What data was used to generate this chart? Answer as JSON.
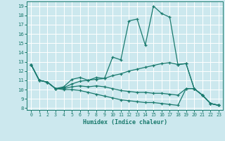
{
  "xlabel": "Humidex (Indice chaleur)",
  "xlim": [
    -0.5,
    23.5
  ],
  "ylim": [
    7.8,
    19.5
  ],
  "yticks": [
    8,
    9,
    10,
    11,
    12,
    13,
    14,
    15,
    16,
    17,
    18,
    19
  ],
  "xticks": [
    0,
    1,
    2,
    3,
    4,
    5,
    6,
    7,
    8,
    9,
    10,
    11,
    12,
    13,
    14,
    15,
    16,
    17,
    18,
    19,
    20,
    21,
    22,
    23
  ],
  "bg_color": "#cce8ee",
  "grid_color": "#ffffff",
  "line_color": "#1a7a6e",
  "line1_x": [
    0,
    1,
    2,
    3,
    4,
    5,
    6,
    7,
    8,
    9,
    10,
    11,
    12,
    13,
    14,
    15,
    16,
    17,
    18,
    19,
    20,
    21,
    22,
    23
  ],
  "line1_y": [
    12.7,
    11.0,
    10.8,
    10.1,
    10.3,
    11.1,
    11.3,
    11.0,
    11.3,
    11.2,
    13.5,
    13.2,
    17.4,
    17.6,
    14.8,
    19.0,
    18.2,
    17.8,
    12.7,
    12.8,
    10.1,
    9.4,
    8.5,
    8.3
  ],
  "line2_x": [
    0,
    1,
    2,
    3,
    4,
    5,
    6,
    7,
    8,
    9,
    10,
    11,
    12,
    13,
    14,
    15,
    16,
    17,
    18,
    19,
    20,
    21,
    22,
    23
  ],
  "line2_y": [
    12.7,
    11.0,
    10.8,
    10.1,
    10.2,
    10.6,
    10.9,
    11.0,
    11.1,
    11.2,
    11.5,
    11.7,
    12.0,
    12.2,
    12.4,
    12.6,
    12.8,
    12.9,
    12.7,
    12.8,
    10.1,
    9.4,
    8.5,
    8.3
  ],
  "line3_x": [
    0,
    1,
    2,
    3,
    4,
    5,
    6,
    7,
    8,
    9,
    10,
    11,
    12,
    13,
    14,
    15,
    16,
    17,
    18,
    19,
    20,
    21,
    22,
    23
  ],
  "line3_y": [
    12.7,
    11.0,
    10.8,
    10.1,
    10.1,
    10.3,
    10.4,
    10.3,
    10.4,
    10.3,
    10.1,
    9.9,
    9.8,
    9.7,
    9.7,
    9.6,
    9.6,
    9.5,
    9.4,
    10.1,
    10.1,
    9.4,
    8.5,
    8.3
  ],
  "line4_x": [
    0,
    1,
    2,
    3,
    4,
    5,
    6,
    7,
    8,
    9,
    10,
    11,
    12,
    13,
    14,
    15,
    16,
    17,
    18,
    19,
    20,
    21,
    22,
    23
  ],
  "line4_y": [
    12.7,
    11.0,
    10.8,
    10.1,
    10.0,
    10.0,
    9.9,
    9.7,
    9.5,
    9.3,
    9.1,
    8.9,
    8.8,
    8.7,
    8.6,
    8.6,
    8.5,
    8.4,
    8.3,
    10.1,
    10.1,
    9.4,
    8.5,
    8.3
  ]
}
